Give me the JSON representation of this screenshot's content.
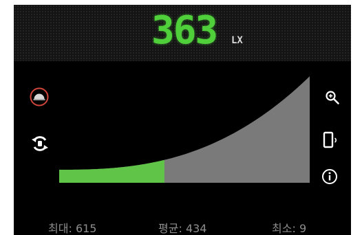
{
  "meter": {
    "value": "363",
    "unit": "LX"
  },
  "curve": {
    "fill_color": "#7a7a7a",
    "progress_color": "#5fc447",
    "progress_fraction": 0.42
  },
  "stats": {
    "max_label": "최대:",
    "max_value": "615",
    "avg_label": "평균:",
    "avg_value": "434",
    "min_label": "최소:",
    "min_value": "9"
  },
  "left_icons": [
    "gauge-icon",
    "rotate-icon"
  ],
  "right_icons": [
    "zoom-icon",
    "phone-icon",
    "info-icon"
  ]
}
